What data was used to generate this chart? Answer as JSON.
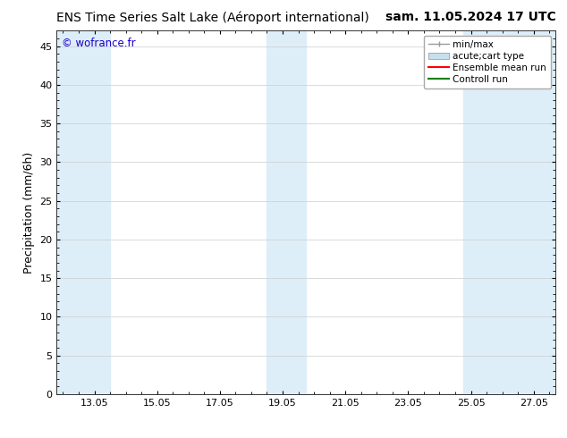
{
  "title": "ENS Time Series Salt Lake (Aéroport international)        sam. 11.05.2024 17 UTC",
  "title_left": "ENS Time Series Salt Lake (Aéroport international)",
  "title_right": "sam. 11.05.2024 17 UTC",
  "ylabel": "Precipitation (mm/6h)",
  "watermark": "© wofrance.fr",
  "watermark_color": "#1a00cc",
  "ylim": [
    0,
    47
  ],
  "yticks": [
    0,
    5,
    10,
    15,
    20,
    25,
    30,
    35,
    40,
    45
  ],
  "xlim_start": 11.8,
  "xlim_end": 27.7,
  "xtick_labels": [
    "13.05",
    "15.05",
    "17.05",
    "19.05",
    "21.05",
    "23.05",
    "25.05",
    "27.05"
  ],
  "xtick_positions": [
    13.0,
    15.0,
    17.0,
    19.0,
    21.0,
    23.0,
    25.0,
    27.0
  ],
  "background_color": "#ffffff",
  "plot_bg_color": "#ffffff",
  "shaded_bands": [
    {
      "x_start": 11.8,
      "x_end": 13.5,
      "color": "#ddeef9"
    },
    {
      "x_start": 18.5,
      "x_end": 19.75,
      "color": "#ddeef9"
    },
    {
      "x_start": 24.75,
      "x_end": 27.7,
      "color": "#ddeef9"
    }
  ],
  "legend_items": [
    {
      "label": "min/max",
      "type": "errorbar",
      "color": "#999999"
    },
    {
      "label": "acute;cart type",
      "type": "bar",
      "color": "#c8dff0"
    },
    {
      "label": "Ensemble mean run",
      "type": "line",
      "color": "#ff0000"
    },
    {
      "label": "Controll run",
      "type": "line",
      "color": "#008000"
    }
  ],
  "title_fontsize": 10,
  "tick_fontsize": 8,
  "ylabel_fontsize": 9,
  "legend_fontsize": 7.5
}
